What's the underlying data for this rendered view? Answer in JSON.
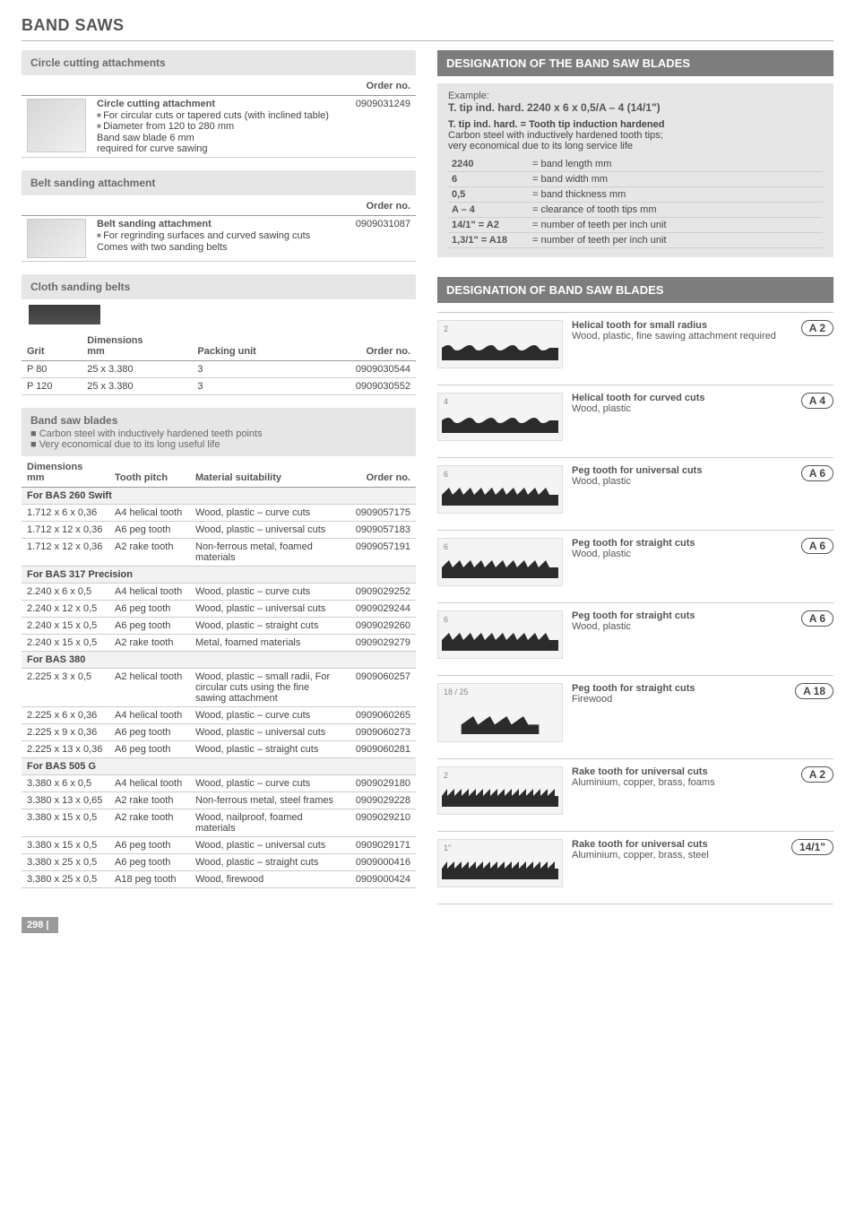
{
  "page": {
    "title": "BAND SAWS",
    "number": "298 |"
  },
  "circle": {
    "head": "Circle cutting attachments",
    "order_label": "Order no.",
    "lead": "Circle cutting attachment",
    "bullets": [
      "For circular cuts or tapered cuts (with inclined table)",
      "Diameter from 120 to 280 mm"
    ],
    "tail1": "Band saw blade 6 mm",
    "tail2": "required for curve sawing",
    "order": "0909031249"
  },
  "belt": {
    "head": "Belt sanding attachment",
    "order_label": "Order no.",
    "lead": "Belt sanding attachment",
    "bullets": [
      "For regrinding surfaces and curved sawing cuts"
    ],
    "tail": "Comes with two sanding belts",
    "order": "0909031087"
  },
  "cloth": {
    "head": "Cloth sanding belts",
    "cols": {
      "grit": "Grit",
      "dim": "Dimensions",
      "dim_unit": "mm",
      "pack": "Packing unit",
      "order": "Order no."
    },
    "rows": [
      {
        "grit": "P 80",
        "dim": "25 x 3.380",
        "pack": "3",
        "order": "0909030544"
      },
      {
        "grit": "P 120",
        "dim": "25 x 3.380",
        "pack": "3",
        "order": "0909030552"
      }
    ]
  },
  "blades": {
    "head": "Band saw blades",
    "bullets": [
      "Carbon steel with inductively hardened teeth points",
      "Very economical due to its long useful life"
    ],
    "cols": {
      "dim": "Dimensions",
      "dim_unit": "mm",
      "pitch": "Tooth pitch",
      "mat": "Material suitability",
      "order": "Order no."
    },
    "groups": [
      {
        "title": "For BAS 260 Swift",
        "rows": [
          {
            "dim": "1.712 x 6 x 0,36",
            "pitch": "A4 helical tooth",
            "mat": "Wood, plastic – curve cuts",
            "order": "0909057175"
          },
          {
            "dim": "1.712 x 12 x 0,36",
            "pitch": "A6 peg tooth",
            "mat": "Wood, plastic – universal cuts",
            "order": "0909057183"
          },
          {
            "dim": "1.712 x 12 x 0,36",
            "pitch": "A2 rake tooth",
            "mat": "Non-ferrous metal, foamed materials",
            "order": "0909057191"
          }
        ]
      },
      {
        "title": "For BAS 317 Precision",
        "rows": [
          {
            "dim": "2.240 x 6 x 0,5",
            "pitch": "A4 helical tooth",
            "mat": "Wood, plastic – curve cuts",
            "order": "0909029252"
          },
          {
            "dim": "2.240 x 12 x 0,5",
            "pitch": "A6 peg tooth",
            "mat": "Wood, plastic – universal cuts",
            "order": "0909029244"
          },
          {
            "dim": "2.240 x 15 x 0,5",
            "pitch": "A6 peg tooth",
            "mat": "Wood, plastic – straight cuts",
            "order": "0909029260"
          },
          {
            "dim": "2.240 x 15 x 0,5",
            "pitch": "A2 rake tooth",
            "mat": "Metal, foamed materials",
            "order": "0909029279"
          }
        ]
      },
      {
        "title": "For BAS 380",
        "rows": [
          {
            "dim": "2.225 x 3 x 0,5",
            "pitch": "A2 helical tooth",
            "mat": "Wood, plastic – small radii, For circular cuts using the fine sawing attachment",
            "order": "0909060257"
          },
          {
            "dim": "2.225 x 6 x 0,36",
            "pitch": "A4 helical tooth",
            "mat": "Wood, plastic – curve cuts",
            "order": "0909060265"
          },
          {
            "dim": "2.225 x 9 x 0,36",
            "pitch": "A6 peg tooth",
            "mat": "Wood, plastic – universal cuts",
            "order": "0909060273"
          },
          {
            "dim": "2.225 x 13 x 0,36",
            "pitch": "A6 peg tooth",
            "mat": "Wood, plastic – straight cuts",
            "order": "0909060281"
          }
        ]
      },
      {
        "title": "For BAS 505 G",
        "rows": [
          {
            "dim": "3.380 x 6 x 0,5",
            "pitch": "A4 helical tooth",
            "mat": "Wood, plastic – curve cuts",
            "order": "0909029180"
          },
          {
            "dim": "3.380 x 13 x 0,65",
            "pitch": "A2 rake tooth",
            "mat": "Non-ferrous metal, steel frames",
            "order": "0909029228"
          },
          {
            "dim": "3.380 x 15 x 0,5",
            "pitch": "A2 rake tooth",
            "mat": "Wood, nailproof, foamed materials",
            "order": "0909029210"
          },
          {
            "dim": "3.380 x 15 x 0,5",
            "pitch": "A6 peg tooth",
            "mat": "Wood, plastic – universal cuts",
            "order": "0909029171"
          },
          {
            "dim": "3.380 x 25 x 0,5",
            "pitch": "A6 peg tooth",
            "mat": "Wood, plastic – straight cuts",
            "order": "0909000416"
          },
          {
            "dim": "3.380 x 25 x 0,5",
            "pitch": "A18 peg tooth",
            "mat": "Wood, firewood",
            "order": "0909000424"
          }
        ]
      }
    ]
  },
  "right": {
    "head1": "DESIGNATION OF THE BAND SAW BLADES",
    "example_label": "Example:",
    "example_line": "T. tip ind. hard. 2240 x 6 x 0,5/A – 4 (14/1\")",
    "example_block": [
      "T. tip ind. hard. = Tooth tip induction hardened",
      "Carbon steel with inductively hardened tooth tips;",
      "very economical due to its long service life"
    ],
    "example_table": [
      {
        "k": "2240",
        "v": "= band length mm"
      },
      {
        "k": "6",
        "v": "= band width mm"
      },
      {
        "k": "0,5",
        "v": "= band thickness mm"
      },
      {
        "k": "A – 4",
        "v": "= clearance of tooth tips mm"
      },
      {
        "k": "14/1\" = A2",
        "v": "= number of teeth per inch unit"
      },
      {
        "k": "1,3/1\" = A18",
        "v": "= number of teeth per inch unit"
      }
    ],
    "head2": "DESIGNATION OF BAND SAW BLADES",
    "designations": [
      {
        "lead": "Helical tooth for small radius",
        "sub": "Wood, plastic, fine sawing attachment required",
        "badge": "A 2",
        "tick": "2",
        "svg": "heli"
      },
      {
        "lead": "Helical tooth for curved cuts",
        "sub": "Wood, plastic",
        "badge": "A 4",
        "tick": "4",
        "svg": "heli"
      },
      {
        "lead": "Peg tooth for universal cuts",
        "sub": "Wood, plastic",
        "badge": "A 6",
        "tick": "6",
        "svg": "peg"
      },
      {
        "lead": "Peg tooth for straight cuts",
        "sub": "Wood, plastic",
        "badge": "A 6",
        "tick": "6",
        "svg": "peg"
      },
      {
        "lead": "Peg tooth for straight cuts",
        "sub": "Wood, plastic",
        "badge": "A 6",
        "tick": "6",
        "svg": "peg"
      },
      {
        "lead": "Peg tooth for straight cuts",
        "sub": "Firewood",
        "badge": "A 18",
        "tick": "18 / 25",
        "svg": "big"
      },
      {
        "lead": "Rake tooth for universal cuts",
        "sub": "Aluminium, copper, brass, foams",
        "badge": "A 2",
        "tick": "2",
        "svg": "rake"
      },
      {
        "lead": "Rake tooth for universal cuts",
        "sub": "Aluminium, copper, brass, steel",
        "badge": "14/1\"",
        "tick": "1\"",
        "svg": "rake"
      }
    ]
  }
}
